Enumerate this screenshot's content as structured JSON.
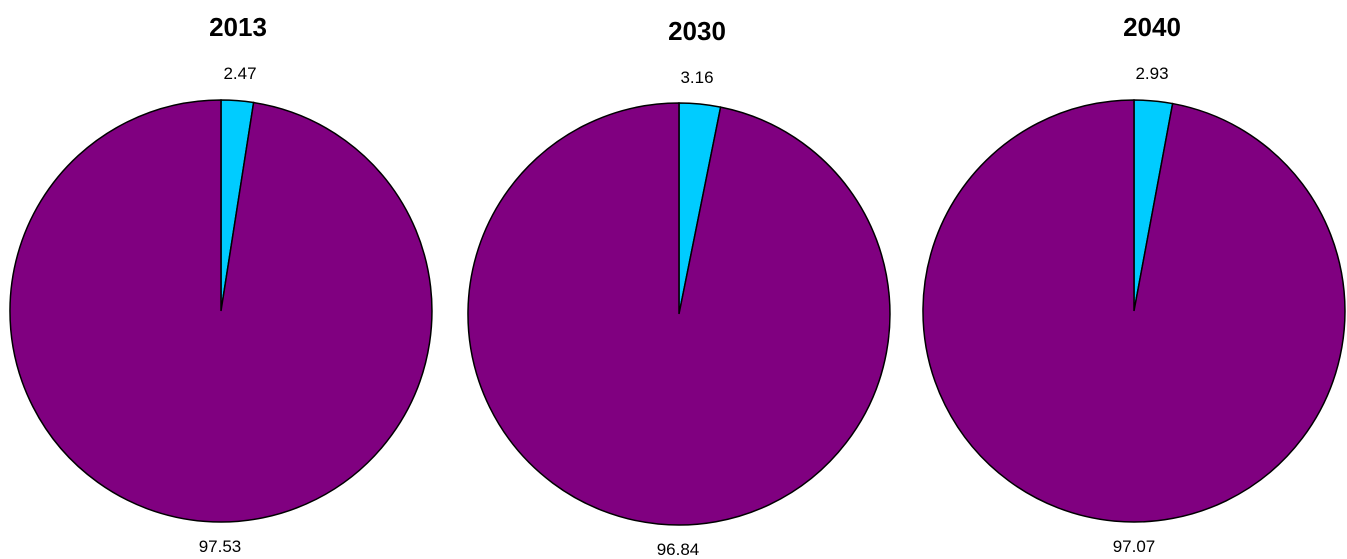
{
  "chart_data": [
    {
      "type": "pie",
      "title": "2013",
      "slices": [
        {
          "value": 2.47,
          "color": "#00CCFF",
          "label": "2.47"
        },
        {
          "value": 97.53,
          "color": "#800080",
          "label": "97.53"
        }
      ]
    },
    {
      "type": "pie",
      "title": "2030",
      "slices": [
        {
          "value": 3.16,
          "color": "#00CCFF",
          "label": "3.16"
        },
        {
          "value": 96.84,
          "color": "#800080",
          "label": "96.84"
        }
      ]
    },
    {
      "type": "pie",
      "title": "2040",
      "slices": [
        {
          "value": 2.93,
          "color": "#00CCFF",
          "label": "2.93"
        },
        {
          "value": 97.07,
          "color": "#800080",
          "label": "97.07"
        }
      ]
    }
  ]
}
